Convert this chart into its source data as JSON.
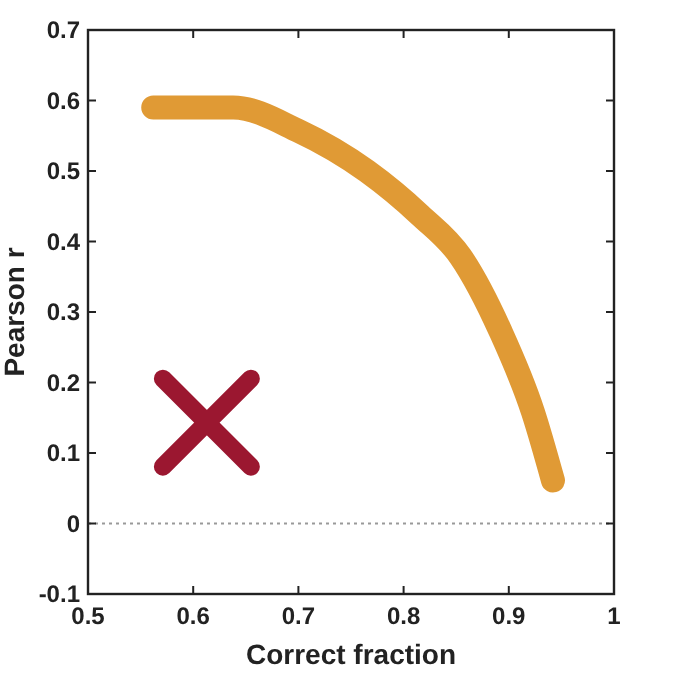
{
  "chart_data": {
    "type": "line",
    "xlabel": "Correct fraction",
    "ylabel": "Pearson r",
    "xlim": [
      0.5,
      1
    ],
    "xticks": [
      0.5,
      0.6,
      0.7,
      0.8,
      0.9,
      1
    ],
    "ylim": [
      -0.1,
      0.7
    ],
    "yticks": [
      -0.1,
      0,
      0.1,
      0.2,
      0.3,
      0.4,
      0.5,
      0.6,
      0.7
    ],
    "grid": false,
    "series": [
      {
        "color": "#e09a35",
        "x": [
          0.562,
          0.6,
          0.638,
          0.7,
          0.765,
          0.816,
          0.854,
          0.892,
          0.923,
          0.942
        ],
        "values": [
          0.59,
          0.59,
          0.59,
          0.557,
          0.5,
          0.437,
          0.379,
          0.273,
          0.158,
          0.061
        ]
      },
      {
        "type": "scatter",
        "color": "#9b1730",
        "marker": "cross",
        "x": [
          0.613
        ],
        "values": [
          0.143
        ]
      }
    ],
    "ref_lines": [
      {
        "axis": "y",
        "value": 0,
        "color": "#999999",
        "line_style": "dotted"
      }
    ]
  }
}
